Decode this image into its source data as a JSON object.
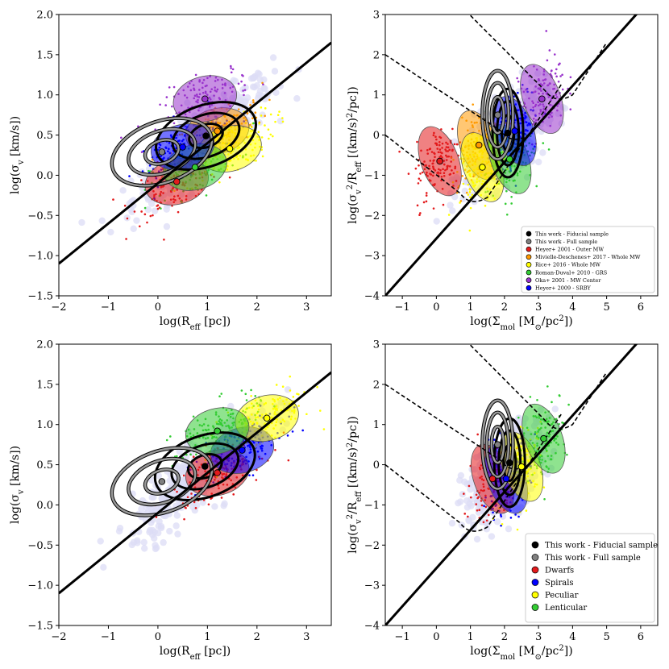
{
  "chart_data": [
    {
      "type": "scatter",
      "panel": "top-left",
      "xlabel": "log(R<sub>eff</sub> [pc])",
      "xlabel_text": "log(Reff [pc])",
      "ylabel_text": "log(σv [km/s])",
      "xlim": [
        -2,
        3.5
      ],
      "ylim": [
        -1.5,
        2.0
      ],
      "xticks": [
        "−2",
        "−1",
        "0",
        "1",
        "2",
        "3"
      ],
      "yticks": [
        "−1.5",
        "−1.0",
        "−0.5",
        "0.0",
        "0.5",
        "1.0",
        "1.5",
        "2.0"
      ],
      "fit_line": {
        "slope": 0.5,
        "intercept": -0.1
      },
      "series": [
        {
          "name": "This work - Fiducial sample",
          "color": "#000000",
          "center": [
            0.97,
            0.49
          ],
          "ellipses": [
            [
              0.7,
              0.2,
              0.1
            ],
            [
              1.2,
              0.35,
              0.1
            ]
          ],
          "fill": false
        },
        {
          "name": "This work - Full sample",
          "color": "#808080",
          "center": [
            0.08,
            0.29
          ],
          "ellipses": [
            [
              0.5,
              0.25,
              0.15
            ],
            [
              0.9,
              0.38,
              0.1
            ]
          ],
          "fill": false
        },
        {
          "name": "Heyer+ 2001 - Outer MW",
          "color": "#e31a1c",
          "center": [
            0.38,
            -0.08
          ],
          "ellipses": [
            [
              1.4,
              0.17,
              0.03
            ]
          ],
          "fill": true
        },
        {
          "name": "Mivielle-Deschenes+ 2017 - Whole MW",
          "color": "#ff9900",
          "center": [
            1.2,
            0.55
          ],
          "ellipses": [
            [
              1.05,
              0.48,
              0.55
            ]
          ],
          "fill": true
        },
        {
          "name": "Rice+ 2016 - Whole MW",
          "color": "#ffff00",
          "center": [
            1.45,
            0.33
          ],
          "ellipses": [
            [
              0.6,
              0.35,
              0.3
            ]
          ],
          "fill": true
        },
        {
          "name": "Roman-Duval+ 2010 - GRS",
          "color": "#33cc33",
          "center": [
            0.75,
            0.1
          ],
          "ellipses": [
            [
              0.8,
              0.25,
              0.1
            ]
          ],
          "fill": true
        },
        {
          "name": "Oka+ 2001 - MW Center",
          "color": "#9933cc",
          "center": [
            0.95,
            0.95
          ],
          "ellipses": [
            [
              0.45,
              0.6,
              0.05
            ]
          ],
          "fill": true
        },
        {
          "name": "Heyer+ 2009 - SRBY",
          "color": "#0000ff",
          "center": [
            0.5,
            0.35
          ],
          "ellipses": [
            [
              0.75,
              0.2,
              0.1
            ]
          ],
          "fill": true
        }
      ]
    },
    {
      "type": "scatter",
      "panel": "top-right",
      "xlabel_text": "log(Σmol [M⊙/pc2])",
      "ylabel_text": "log(σv2/Reff [(km/s)2/pc])",
      "xlim": [
        -1.5,
        6.5
      ],
      "ylim": [
        -4,
        3
      ],
      "xticks": [
        "−1",
        "0",
        "1",
        "2",
        "3",
        "4",
        "5",
        "6"
      ],
      "yticks": [
        "−4",
        "−3",
        "−2",
        "−1",
        "0",
        "1",
        "2",
        "3"
      ],
      "legend": {
        "position": "lower-right",
        "entries": [
          {
            "label": "This work - Fiducial sample",
            "color": "#000000"
          },
          {
            "label": "This work - Full sample",
            "color": "#808080"
          },
          {
            "label": "Heyer+ 2001 - Outer MW",
            "color": "#e31a1c"
          },
          {
            "label": "Mivielle-Deschenes+ 2017 - Whole MW",
            "color": "#ff9900"
          },
          {
            "label": "Rice+ 2016 - Whole MW",
            "color": "#ffff00"
          },
          {
            "label": "Roman-Duval+ 2010 - GRS",
            "color": "#33cc33"
          },
          {
            "label": "Oka+ 2001 - MW Center",
            "color": "#9933cc"
          },
          {
            "label": "Heyer+ 2009 - SRBY",
            "color": "#0000ff"
          }
        ]
      },
      "series": [
        {
          "name": "This work - Fiducial sample",
          "color": "#000000",
          "center": [
            2.1,
            0.05
          ]
        },
        {
          "name": "This work - Full sample",
          "color": "#808080",
          "center": [
            1.8,
            0.5
          ]
        },
        {
          "name": "Heyer+ 2001 - Outer MW",
          "color": "#e31a1c",
          "center": [
            0.1,
            -0.65
          ]
        },
        {
          "name": "Mivielle-Deschenes+ 2017 - Whole MW",
          "color": "#ff9900",
          "center": [
            1.25,
            -0.25
          ]
        },
        {
          "name": "Rice+ 2016 - Whole MW",
          "color": "#ffff00",
          "center": [
            1.35,
            -0.8
          ]
        },
        {
          "name": "Roman-Duval+ 2010 - GRS",
          "color": "#33cc33",
          "center": [
            2.15,
            -0.6
          ]
        },
        {
          "name": "Oka+ 2001 - MW Center",
          "color": "#9933cc",
          "center": [
            3.1,
            0.9
          ]
        },
        {
          "name": "Heyer+ 2009 - SRBY",
          "color": "#0000ff",
          "center": [
            2.3,
            0.1
          ]
        }
      ]
    },
    {
      "type": "scatter",
      "panel": "bottom-left",
      "xlabel_text": "log(Reff [pc])",
      "ylabel_text": "log(σv [km/s])",
      "xlim": [
        -2,
        3.5
      ],
      "ylim": [
        -1.5,
        2.0
      ],
      "xticks": [
        "−2",
        "−1",
        "0",
        "1",
        "2",
        "3"
      ],
      "yticks": [
        "−1.5",
        "−1.0",
        "−0.5",
        "0.0",
        "0.5",
        "1.0",
        "1.5",
        "2.0"
      ],
      "series": [
        {
          "name": "This work - Fiducial sample",
          "color": "#000000",
          "center": [
            0.95,
            0.48
          ]
        },
        {
          "name": "This work - Full sample",
          "color": "#808080",
          "center": [
            0.08,
            0.29
          ]
        },
        {
          "name": "Dwarfs",
          "color": "#e31a1c",
          "center": [
            1.2,
            0.4
          ]
        },
        {
          "name": "Spirals",
          "color": "#0000ff",
          "center": [
            1.7,
            0.68
          ]
        },
        {
          "name": "Peculiar",
          "color": "#ffff00",
          "center": [
            2.2,
            1.08
          ]
        },
        {
          "name": "Lenticular",
          "color": "#33cc33",
          "center": [
            1.2,
            0.92
          ]
        }
      ]
    },
    {
      "type": "scatter",
      "panel": "bottom-right",
      "xlabel_text": "log(Σmol [M⊙/pc2])",
      "ylabel_text": "log(σv2/Reff [(km/s)2/pc])",
      "xlim": [
        -1.5,
        6.5
      ],
      "ylim": [
        -4,
        3
      ],
      "xticks": [
        "−1",
        "0",
        "1",
        "2",
        "3",
        "4",
        "5",
        "6"
      ],
      "yticks": [
        "−4",
        "−3",
        "−2",
        "−1",
        "0",
        "1",
        "2",
        "3"
      ],
      "legend": {
        "position": "lower-right",
        "entries": [
          {
            "label": "This work - Fiducial sample",
            "color": "#000000"
          },
          {
            "label": "This work - Full sample",
            "color": "#808080"
          },
          {
            "label": "Dwarfs",
            "color": "#e31a1c"
          },
          {
            "label": "Spirals",
            "color": "#0000ff"
          },
          {
            "label": "Peculiar",
            "color": "#ffff00"
          },
          {
            "label": "Lenticular",
            "color": "#33cc33"
          }
        ]
      },
      "series": [
        {
          "name": "This work - Fiducial sample",
          "color": "#000000",
          "center": [
            2.15,
            0.05
          ]
        },
        {
          "name": "This work - Full sample",
          "color": "#808080",
          "center": [
            1.8,
            0.5
          ]
        },
        {
          "name": "Dwarfs",
          "color": "#e31a1c",
          "center": [
            1.65,
            -0.35
          ]
        },
        {
          "name": "Spirals",
          "color": "#0000ff",
          "center": [
            2.05,
            -0.35
          ]
        },
        {
          "name": "Peculiar",
          "color": "#ffff00",
          "center": [
            2.5,
            -0.05
          ]
        },
        {
          "name": "Lenticular",
          "color": "#33cc33",
          "center": [
            3.15,
            0.65
          ]
        }
      ]
    }
  ]
}
